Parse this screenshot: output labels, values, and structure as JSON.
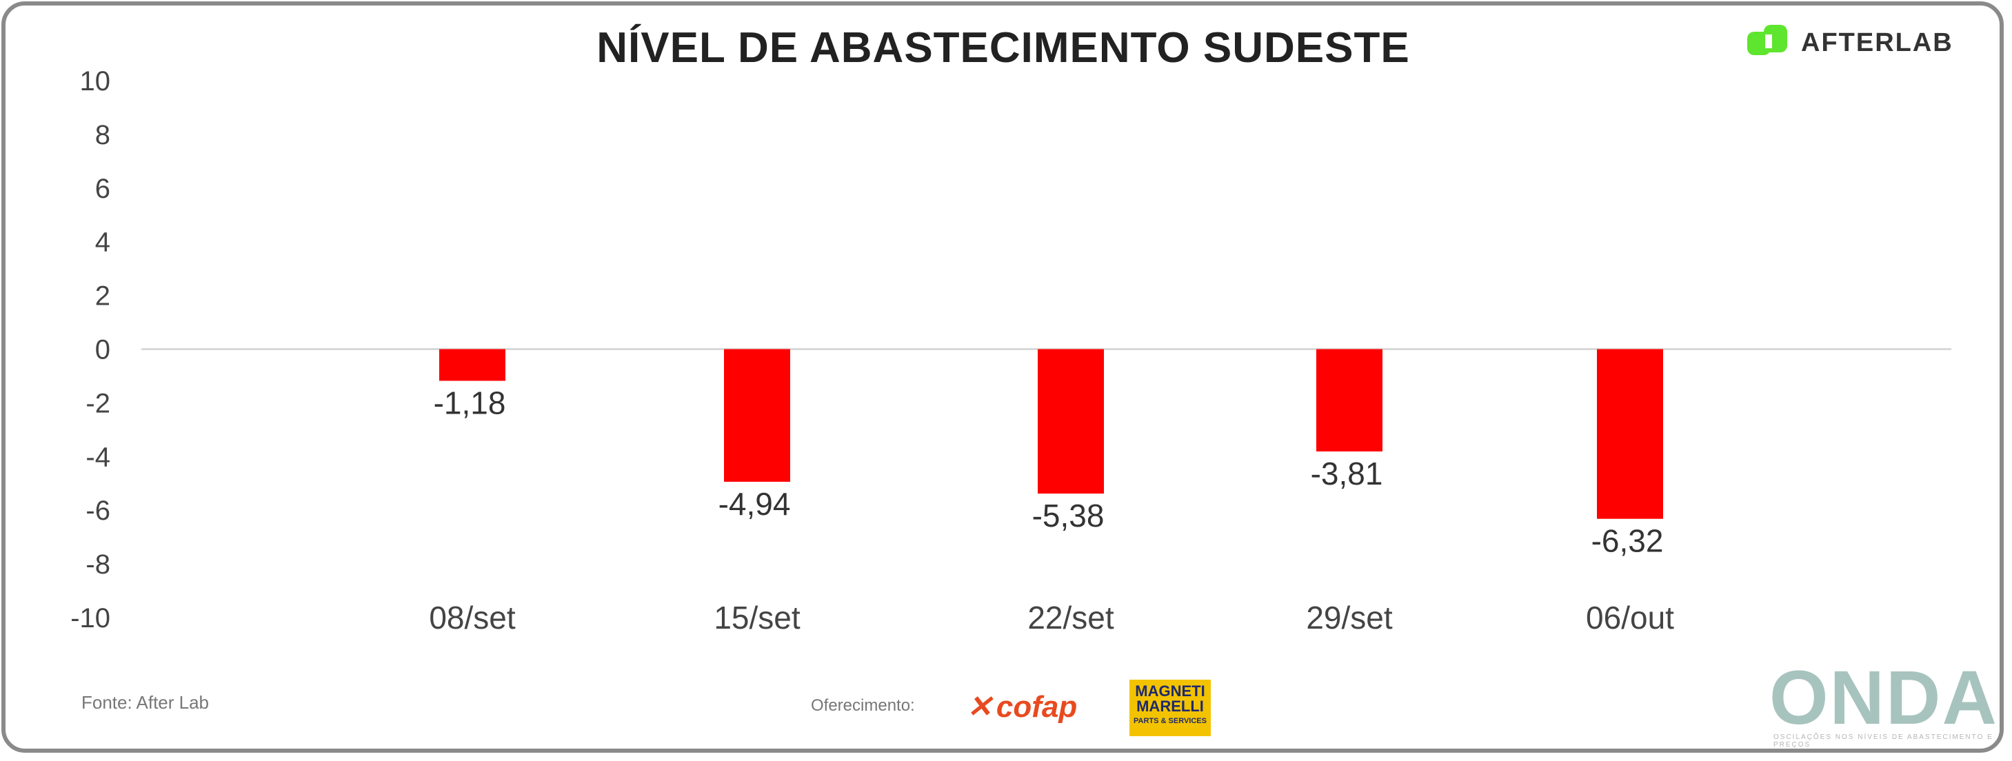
{
  "title": "NÍVEL DE ABASTECIMENTO SUDESTE",
  "brand": {
    "name": "AFTERLAB",
    "mark_color": "#5ee52e"
  },
  "colors": {
    "bar": "#ff0000",
    "zero_line": "#d9d9d9",
    "frame": "#8a8a8a"
  },
  "footer": {
    "source": "Fonte: After Lab",
    "sponsor_label": "Oferecimento:",
    "sponsor_1": "cofap",
    "sponsor_2_top": "MAGNETI MARELLI",
    "sponsor_2_bottom": "PARTS & SERVICES",
    "onda": "ONDA",
    "onda_sub": "OSCILAÇÕES NOS NÍVEIS DE ABASTECIMENTO E PREÇOS"
  },
  "chart_data": {
    "type": "bar",
    "title": "NÍVEL DE ABASTECIMENTO SUDESTE",
    "categories": [
      "08/set",
      "15/set",
      "22/set",
      "29/set",
      "06/out"
    ],
    "values": [
      -1.18,
      -4.94,
      -5.38,
      -3.81,
      -6.32
    ],
    "data_labels": [
      "-1,18",
      "-4,94",
      "-5,38",
      "-3,81",
      "-6,32"
    ],
    "ylim": [
      -10,
      10
    ],
    "yticks": [
      "10",
      "8",
      "6",
      "4",
      "2",
      "0",
      "-2",
      "-4",
      "-6",
      "-8",
      "-10"
    ],
    "ytick_values": [
      10,
      8,
      6,
      4,
      2,
      0,
      -2,
      -4,
      -6,
      -8,
      -10
    ],
    "grid": false,
    "legend": "none"
  }
}
